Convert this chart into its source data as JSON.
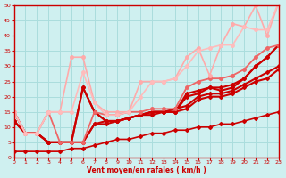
{
  "title": "",
  "xlabel": "Vent moyen/en rafales ( km/h )",
  "background_color": "#cff0f0",
  "grid_color": "#aadddd",
  "axis_color": "#cc0000",
  "label_color": "#cc0000",
  "xlim": [
    0,
    23
  ],
  "ylim": [
    0,
    50
  ],
  "yticks": [
    0,
    5,
    10,
    15,
    20,
    25,
    30,
    35,
    40,
    45,
    50
  ],
  "xticks": [
    0,
    1,
    2,
    3,
    4,
    5,
    6,
    7,
    8,
    9,
    10,
    11,
    12,
    13,
    14,
    15,
    16,
    17,
    18,
    19,
    20,
    21,
    22,
    23
  ],
  "series": [
    {
      "x": [
        0,
        1,
        2,
        3,
        4,
        5,
        6,
        7,
        8,
        9,
        10,
        11,
        12,
        13,
        14,
        15,
        16,
        17,
        18,
        19,
        20,
        21,
        22,
        23
      ],
      "y": [
        2,
        2,
        2,
        2,
        2,
        3,
        3,
        4,
        5,
        6,
        6,
        7,
        8,
        8,
        9,
        9,
        10,
        10,
        11,
        11,
        12,
        13,
        14,
        15
      ],
      "color": "#cc0000",
      "linewidth": 1.2,
      "marker": "D",
      "markersize": 2,
      "alpha": 1.0
    },
    {
      "x": [
        0,
        1,
        2,
        3,
        4,
        5,
        6,
        7,
        8,
        9,
        10,
        11,
        12,
        13,
        14,
        15,
        16,
        17,
        18,
        19,
        20,
        21,
        22,
        23
      ],
      "y": [
        12,
        8,
        8,
        5,
        5,
        5,
        5,
        11,
        11,
        12,
        13,
        14,
        14,
        15,
        15,
        16,
        19,
        20,
        20,
        21,
        23,
        25,
        26,
        29
      ],
      "color": "#cc0000",
      "linewidth": 1.5,
      "marker": "D",
      "markersize": 2,
      "alpha": 1.0
    },
    {
      "x": [
        0,
        1,
        2,
        3,
        4,
        5,
        6,
        7,
        8,
        9,
        10,
        11,
        12,
        13,
        14,
        15,
        16,
        17,
        18,
        19,
        20,
        21,
        22,
        23
      ],
      "y": [
        12,
        8,
        8,
        5,
        5,
        5,
        5,
        11,
        12,
        12,
        13,
        14,
        15,
        15,
        16,
        17,
        20,
        21,
        21,
        22,
        24,
        26,
        28,
        30
      ],
      "color": "#cc0000",
      "linewidth": 1.5,
      "marker": "D",
      "markersize": 2,
      "alpha": 1.0
    },
    {
      "x": [
        0,
        1,
        2,
        3,
        4,
        5,
        6,
        7,
        8,
        9,
        10,
        11,
        12,
        13,
        14,
        15,
        16,
        17,
        18,
        19,
        20,
        21,
        22,
        23
      ],
      "y": [
        12,
        8,
        8,
        5,
        5,
        5,
        23,
        15,
        12,
        12,
        13,
        14,
        15,
        15,
        15,
        20,
        21,
        23,
        22,
        23,
        26,
        30,
        33,
        37
      ],
      "color": "#cc0000",
      "linewidth": 1.5,
      "marker": "D",
      "markersize": 2,
      "alpha": 1.0
    },
    {
      "x": [
        0,
        1,
        2,
        3,
        4,
        5,
        6,
        7,
        8,
        9,
        10,
        11,
        12,
        13,
        14,
        15,
        16,
        17,
        18,
        19,
        20,
        21,
        22,
        23
      ],
      "y": [
        15,
        8,
        8,
        5,
        5,
        5,
        23,
        15,
        12,
        12,
        13,
        14,
        15,
        15,
        15,
        21,
        22,
        23,
        23,
        24,
        26,
        30,
        33,
        37
      ],
      "color": "#cc0000",
      "linewidth": 1.5,
      "marker": "D",
      "markersize": 2,
      "alpha": 1.0
    },
    {
      "x": [
        0,
        1,
        2,
        3,
        4,
        5,
        6,
        7,
        8,
        9,
        10,
        11,
        12,
        13,
        14,
        15,
        16,
        17,
        18,
        19,
        20,
        21,
        22,
        23
      ],
      "y": [
        15,
        8,
        8,
        15,
        5,
        5,
        5,
        15,
        14,
        14,
        15,
        15,
        16,
        16,
        16,
        23,
        25,
        26,
        26,
        27,
        29,
        33,
        36,
        37
      ],
      "color": "#ee6666",
      "linewidth": 1.3,
      "marker": "o",
      "markersize": 2.5,
      "alpha": 1.0
    },
    {
      "x": [
        0,
        1,
        2,
        3,
        4,
        5,
        6,
        7,
        8,
        9,
        10,
        11,
        12,
        13,
        14,
        15,
        16,
        17,
        18,
        19,
        20,
        21,
        22,
        23
      ],
      "y": [
        15,
        8,
        8,
        15,
        15,
        33,
        33,
        18,
        15,
        15,
        15,
        25,
        25,
        25,
        26,
        33,
        36,
        27,
        37,
        44,
        43,
        50,
        40,
        51
      ],
      "color": "#ffaaaa",
      "linewidth": 1.2,
      "marker": "o",
      "markersize": 2.5,
      "alpha": 1.0
    },
    {
      "x": [
        0,
        1,
        2,
        3,
        4,
        5,
        6,
        7,
        8,
        9,
        10,
        11,
        12,
        13,
        14,
        15,
        16,
        17,
        18,
        19,
        20,
        21,
        22,
        23
      ],
      "y": [
        15,
        8,
        8,
        15,
        15,
        15,
        28,
        18,
        14,
        14,
        15,
        20,
        25,
        25,
        26,
        30,
        35,
        36,
        37,
        37,
        43,
        42,
        42,
        51
      ],
      "color": "#ffbbbb",
      "linewidth": 1.2,
      "marker": "o",
      "markersize": 2.5,
      "alpha": 1.0
    }
  ]
}
